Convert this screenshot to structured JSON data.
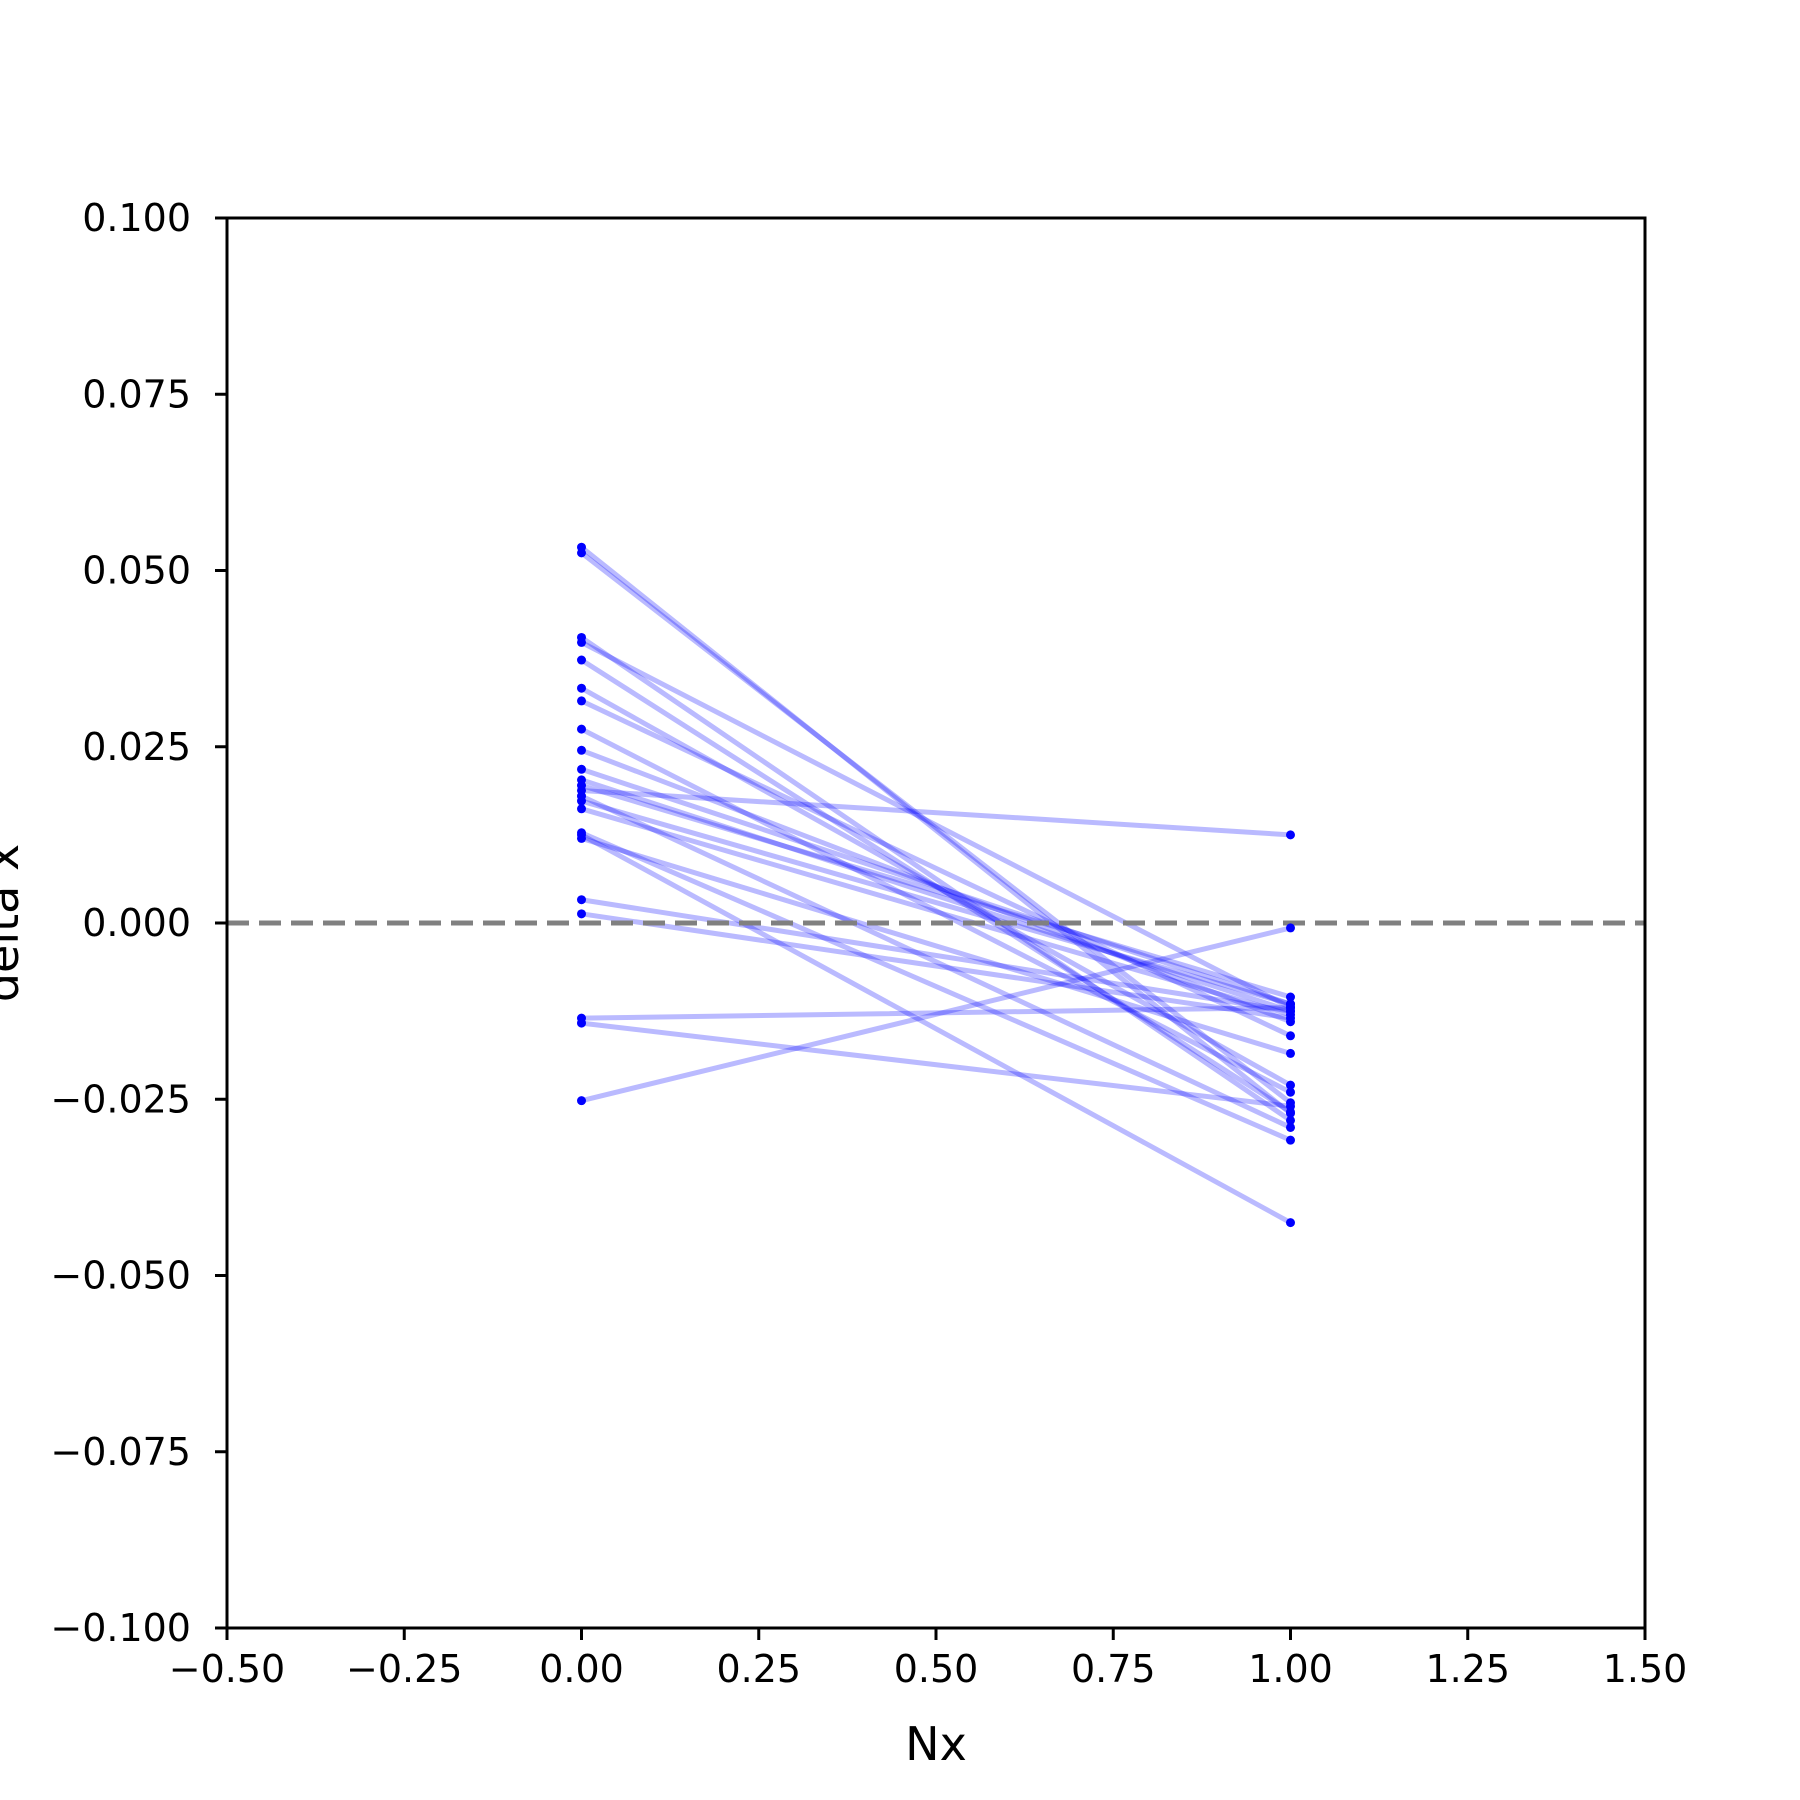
{
  "chart_data": {
    "type": "line",
    "title": "",
    "xlabel": "Nx",
    "ylabel": "delta x",
    "xlim": [
      -0.5,
      1.5
    ],
    "ylim": [
      -0.1,
      0.1
    ],
    "xticks": [
      -0.5,
      -0.25,
      0.0,
      0.25,
      0.5,
      0.75,
      1.0,
      1.25,
      1.5
    ],
    "xtick_labels": [
      "−0.50",
      "−0.25",
      "0.00",
      "0.25",
      "0.50",
      "0.75",
      "1.00",
      "1.25",
      "1.50"
    ],
    "yticks": [
      0.1,
      0.075,
      0.05,
      0.025,
      0.0,
      -0.025,
      -0.05,
      -0.075,
      -0.1
    ],
    "ytick_labels": [
      "0.100",
      "0.075",
      "0.050",
      "0.025",
      "0.000",
      "−0.025",
      "−0.050",
      "−0.075",
      "−0.100"
    ],
    "grid": false,
    "reference_line": {
      "y": 0.0,
      "style": "dashed",
      "color": "#808080"
    },
    "series_color": "#0000ff",
    "line_alpha": 0.27,
    "x": [
      0,
      1
    ],
    "pairs": [
      [
        0.0533,
        -0.027
      ],
      [
        0.0525,
        -0.0255
      ],
      [
        0.0405,
        -0.028
      ],
      [
        0.0398,
        -0.012
      ],
      [
        0.0373,
        -0.0268
      ],
      [
        0.0333,
        -0.023
      ],
      [
        0.0315,
        -0.016
      ],
      [
        0.0275,
        -0.024
      ],
      [
        0.0245,
        -0.014
      ],
      [
        0.0218,
        -0.0115
      ],
      [
        0.0203,
        -0.0125
      ],
      [
        0.0195,
        -0.0105
      ],
      [
        0.0188,
        0.0125
      ],
      [
        0.018,
        -0.029
      ],
      [
        0.0173,
        -0.0115
      ],
      [
        0.0162,
        -0.013
      ],
      [
        0.0128,
        -0.0308
      ],
      [
        0.0125,
        -0.0425
      ],
      [
        0.012,
        -0.0185
      ],
      [
        0.0033,
        -0.0125
      ],
      [
        0.0013,
        -0.0135
      ],
      [
        -0.0135,
        -0.012
      ],
      [
        -0.0142,
        -0.026
      ],
      [
        -0.0252,
        -0.0007
      ]
    ]
  }
}
